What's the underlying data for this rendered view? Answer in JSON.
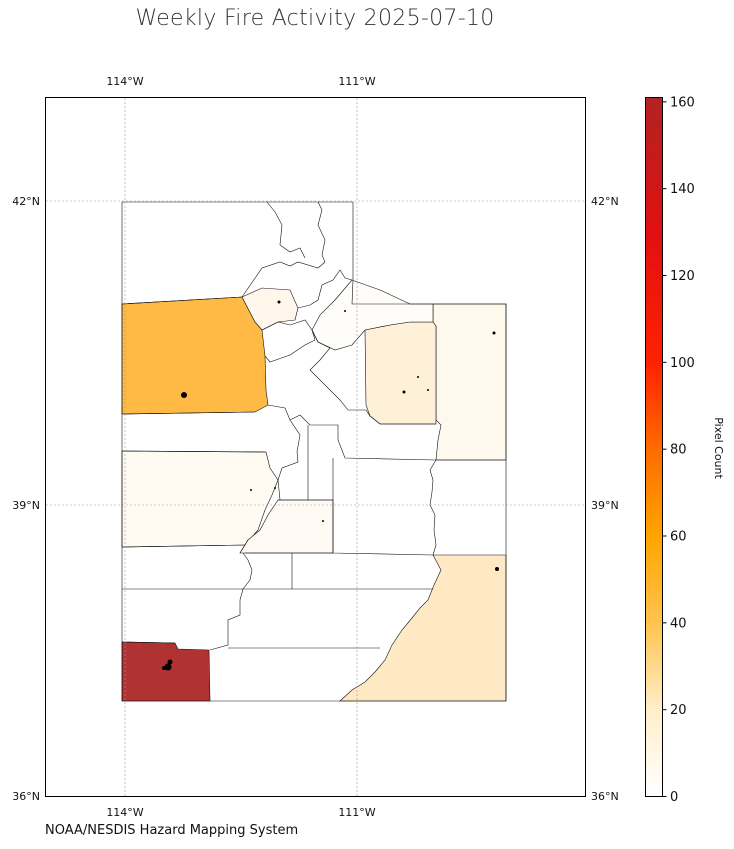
{
  "title": "Weekly Fire Activity 2025-07-10",
  "credit": "NOAA/NESDIS Hazard Mapping System",
  "colorbar": {
    "label": "Pixel Count",
    "ticks": [
      "0",
      "20",
      "40",
      "60",
      "80",
      "100",
      "120",
      "140",
      "160"
    ],
    "min": 0,
    "max": 161,
    "stops": [
      "#ffffff",
      "#fff0cc",
      "#ffc34d",
      "#ffa500",
      "#ff6a00",
      "#ff2200",
      "#e21010",
      "#b22222"
    ]
  },
  "axes": {
    "lon_ticks": [
      "114°W",
      "111°W"
    ],
    "lat_ticks": [
      "42°N",
      "39°N",
      "36°N"
    ],
    "lon_range": [
      -115,
      -108
    ],
    "lat_range": [
      36,
      43
    ]
  },
  "legend_colors": {
    "box_elder": "#ffba45",
    "washington": "#b03232",
    "san_juan": "#ffe9c4",
    "uintah": "#fff8ec",
    "duchesne": "#fff0d8",
    "millard": "#fffaf2",
    "sevier": "#fffaf3",
    "cache": "#fff6ec",
    "daggett": "#fffdf9",
    "white": "#ffffff"
  }
}
